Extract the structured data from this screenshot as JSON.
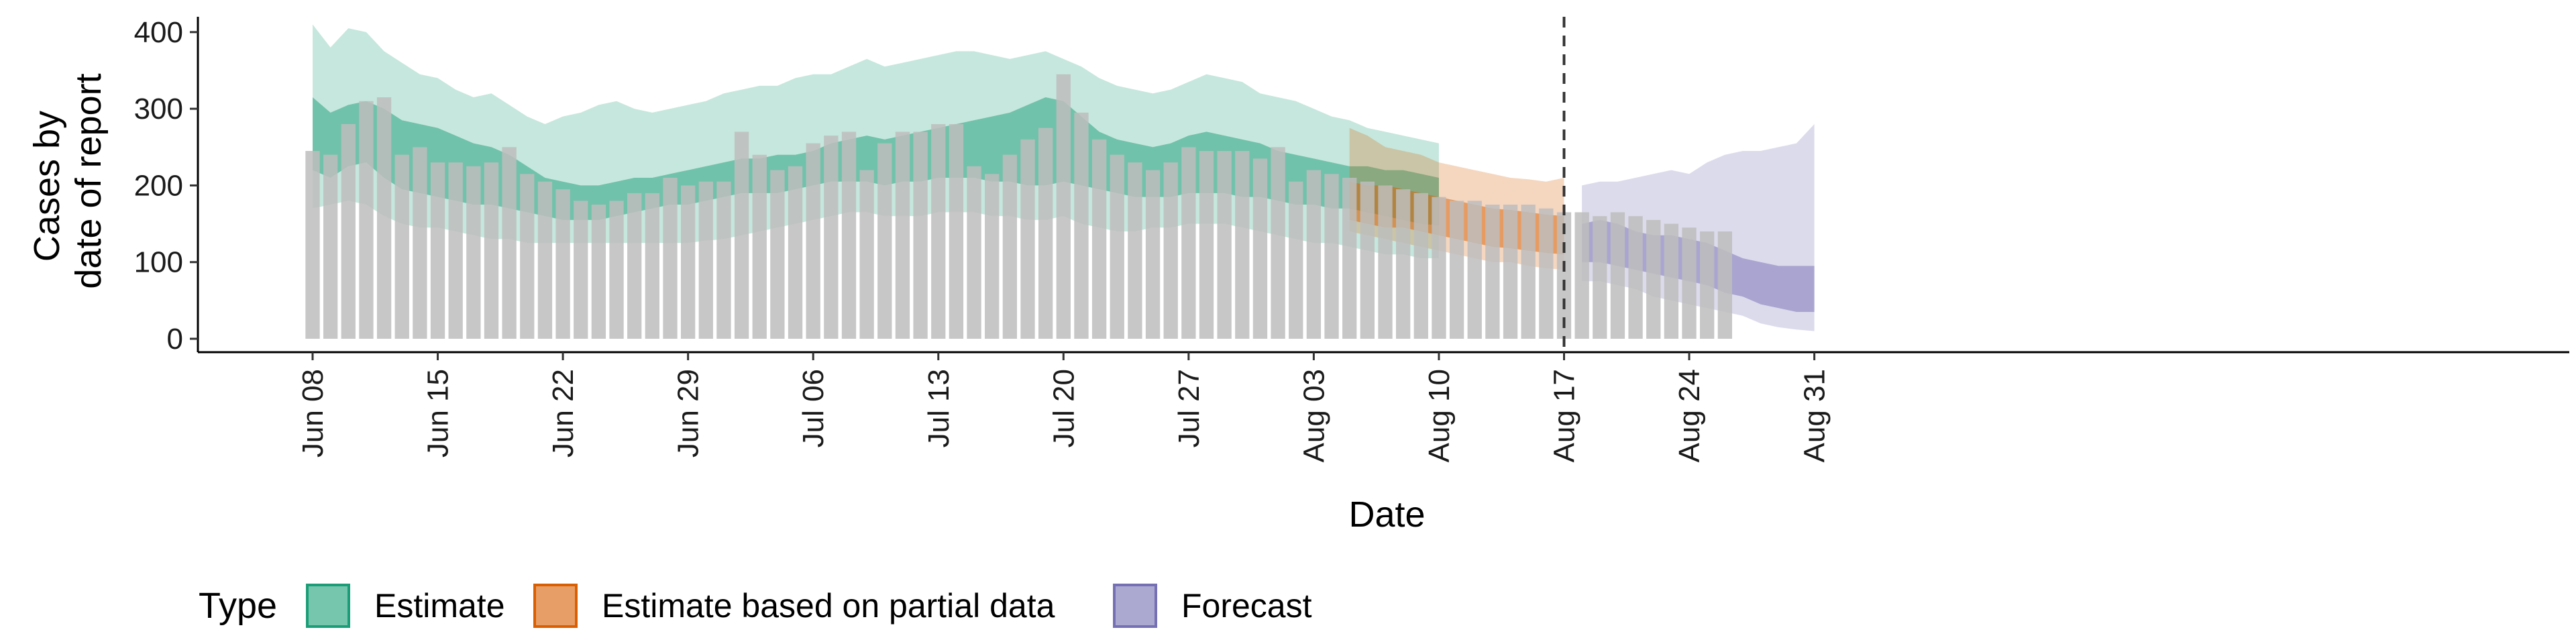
{
  "chart_data": {
    "type": "bar",
    "xlabel": "Date",
    "ylabel_lines": [
      "Cases by",
      "date of report"
    ],
    "ylim": [
      0,
      420
    ],
    "y_ticks": [
      0,
      100,
      200,
      300,
      400
    ],
    "x_tick_labels": [
      "Jun 08",
      "Jun 15",
      "Jun 22",
      "Jun 29",
      "Jul 06",
      "Jul 13",
      "Jul 20",
      "Jul 27",
      "Aug 03",
      "Aug 10",
      "Aug 17",
      "Aug 24",
      "Aug 31"
    ],
    "legend": {
      "title": "Type",
      "position": "bottom",
      "entries": [
        {
          "name": "Estimate",
          "color": "#1b9e77"
        },
        {
          "name": "Estimate based on partial data",
          "color": "#d95f02"
        },
        {
          "name": "Forecast",
          "color": "#7570b3"
        }
      ]
    },
    "vline_date": "Aug 17",
    "bar_color": "#bdbdbd",
    "reported_cases": {
      "start_date": "Jun 08",
      "values": [
        245,
        240,
        280,
        310,
        315,
        240,
        250,
        230,
        230,
        225,
        230,
        250,
        215,
        205,
        195,
        180,
        175,
        180,
        190,
        190,
        210,
        200,
        205,
        205,
        270,
        240,
        220,
        225,
        255,
        265,
        270,
        220,
        255,
        270,
        270,
        280,
        280,
        225,
        215,
        240,
        260,
        275,
        345,
        295,
        260,
        240,
        230,
        220,
        230,
        250,
        245,
        245,
        245,
        235,
        250,
        205,
        220,
        215,
        210,
        205,
        200,
        195,
        190,
        185,
        180,
        180,
        175,
        175,
        175,
        170,
        165,
        165,
        160,
        165,
        160,
        155,
        150,
        145,
        140,
        140
      ]
    },
    "series": [
      {
        "name": "Estimate",
        "start_date": "Jun 08",
        "lower90": [
          170,
          175,
          180,
          175,
          160,
          150,
          145,
          145,
          140,
          135,
          130,
          130,
          125,
          125,
          125,
          125,
          125,
          125,
          125,
          125,
          125,
          125,
          128,
          130,
          135,
          140,
          145,
          150,
          155,
          160,
          165,
          165,
          160,
          160,
          160,
          165,
          165,
          165,
          160,
          160,
          155,
          155,
          160,
          150,
          145,
          140,
          140,
          145,
          145,
          150,
          150,
          150,
          145,
          140,
          135,
          130,
          125,
          125,
          120,
          115,
          110,
          110,
          105,
          105
        ],
        "lower50": [
          220,
          210,
          225,
          230,
          210,
          195,
          190,
          185,
          180,
          175,
          175,
          170,
          165,
          160,
          155,
          155,
          155,
          160,
          165,
          170,
          175,
          175,
          180,
          185,
          190,
          190,
          190,
          195,
          200,
          205,
          205,
          205,
          200,
          205,
          205,
          210,
          210,
          210,
          205,
          205,
          200,
          200,
          205,
          200,
          195,
          190,
          185,
          185,
          185,
          190,
          190,
          190,
          185,
          185,
          180,
          175,
          175,
          170,
          170,
          165,
          160,
          155,
          150,
          148
        ],
        "upper50": [
          315,
          295,
          305,
          310,
          300,
          285,
          280,
          275,
          265,
          255,
          250,
          240,
          225,
          210,
          205,
          200,
          200,
          205,
          210,
          210,
          215,
          220,
          225,
          230,
          235,
          235,
          240,
          240,
          245,
          255,
          260,
          265,
          260,
          265,
          270,
          275,
          280,
          285,
          290,
          295,
          305,
          315,
          310,
          290,
          270,
          260,
          255,
          250,
          255,
          265,
          270,
          265,
          260,
          255,
          245,
          240,
          235,
          230,
          225,
          225,
          220,
          220,
          215,
          210
        ],
        "upper90": [
          410,
          380,
          405,
          400,
          375,
          360,
          345,
          340,
          325,
          315,
          320,
          305,
          290,
          280,
          290,
          295,
          305,
          310,
          300,
          295,
          300,
          305,
          310,
          320,
          325,
          330,
          330,
          340,
          345,
          345,
          355,
          365,
          355,
          360,
          365,
          370,
          375,
          375,
          370,
          365,
          370,
          375,
          365,
          355,
          340,
          330,
          325,
          320,
          325,
          335,
          345,
          340,
          335,
          320,
          315,
          310,
          300,
          290,
          285,
          275,
          270,
          265,
          260,
          255
        ]
      },
      {
        "name": "Estimate based on partial data",
        "start_date": "Aug 05",
        "lower90": [
          140,
          135,
          130,
          125,
          120,
          115,
          110,
          105,
          100,
          100,
          95,
          92,
          90
        ],
        "lower50": [
          155,
          150,
          145,
          145,
          140,
          135,
          130,
          125,
          120,
          118,
          115,
          112,
          110
        ],
        "upper50": [
          205,
          200,
          200,
          195,
          190,
          185,
          180,
          175,
          170,
          168,
          165,
          162,
          160
        ],
        "upper90": [
          275,
          265,
          250,
          245,
          240,
          230,
          225,
          220,
          215,
          210,
          208,
          205,
          210
        ]
      },
      {
        "name": "Forecast",
        "start_date": "Aug 18",
        "lower90": [
          75,
          75,
          70,
          65,
          55,
          50,
          45,
          40,
          35,
          30,
          20,
          15,
          12,
          10
        ],
        "lower50": [
          100,
          100,
          95,
          90,
          85,
          80,
          75,
          70,
          60,
          55,
          45,
          40,
          35,
          35
        ],
        "upper50": [
          150,
          155,
          150,
          140,
          135,
          135,
          130,
          125,
          115,
          105,
          100,
          95,
          95,
          95
        ],
        "upper90": [
          200,
          205,
          205,
          210,
          215,
          220,
          215,
          230,
          240,
          245,
          245,
          250,
          255,
          280
        ]
      }
    ]
  }
}
